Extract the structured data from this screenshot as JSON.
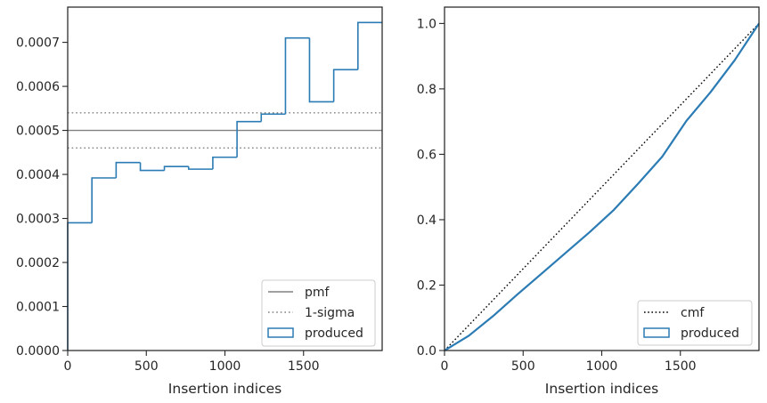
{
  "chart_data": [
    {
      "type": "histogram-step",
      "xlabel": "Insertion indices",
      "ylabel": "",
      "xlim": [
        0,
        2000
      ],
      "ylim": [
        0,
        0.00078
      ],
      "x_ticks": [
        0,
        500,
        1000,
        1500
      ],
      "x_tick_labels": [
        "0",
        "500",
        "1000",
        "1500"
      ],
      "y_ticks": [
        0,
        0.0001,
        0.0002,
        0.0003,
        0.0004,
        0.0005,
        0.0006,
        0.0007
      ],
      "y_tick_labels": [
        "0.0000",
        "0.0001",
        "0.0002",
        "0.0003",
        "0.0004",
        "0.0005",
        "0.0006",
        "0.0007"
      ],
      "bin_edges": [
        0,
        154,
        308,
        462,
        615,
        769,
        923,
        1077,
        1231,
        1385,
        1538,
        1692,
        1846,
        2000
      ],
      "values": [
        0.00029,
        0.000392,
        0.000427,
        0.000409,
        0.000418,
        0.000412,
        0.000439,
        0.00052,
        0.000537,
        0.00071,
        0.000565,
        0.000638,
        0.000745
      ],
      "reference_lines": [
        {
          "name": "pmf",
          "y": 0.0005,
          "style": "solid",
          "color": "#808080"
        },
        {
          "name": "1-sigma",
          "y": 0.00054,
          "style": "dotted",
          "color": "#808080"
        },
        {
          "name": "1-sigma",
          "y": 0.00046,
          "style": "dotted",
          "color": "#808080"
        }
      ],
      "series_color": "#2b7bb4",
      "legend": {
        "placement": "lower right",
        "entries": [
          "pmf",
          "1-sigma",
          "produced"
        ]
      }
    },
    {
      "type": "line",
      "xlabel": "Insertion indices",
      "ylabel": "",
      "xlim": [
        0,
        2000
      ],
      "ylim": [
        0,
        1.05
      ],
      "x_ticks": [
        0,
        500,
        1000,
        1500
      ],
      "x_tick_labels": [
        "0",
        "500",
        "1000",
        "1500"
      ],
      "y_ticks": [
        0,
        0.2,
        0.4,
        0.6,
        0.8,
        1.0
      ],
      "y_tick_labels": [
        "0.0",
        "0.2",
        "0.4",
        "0.6",
        "0.8",
        "1.0"
      ],
      "series": [
        {
          "name": "cmf",
          "style": "dotted",
          "color": "#000000",
          "x": [
            0,
            2000
          ],
          "y": [
            0,
            1.0
          ]
        },
        {
          "name": "produced",
          "style": "solid",
          "color": "#2b7bb4",
          "x": [
            0,
            154,
            308,
            462,
            615,
            769,
            923,
            1077,
            1231,
            1385,
            1538,
            1692,
            1846,
            2000
          ],
          "y": [
            0,
            0.045,
            0.105,
            0.171,
            0.234,
            0.298,
            0.362,
            0.43,
            0.51,
            0.593,
            0.702,
            0.79,
            0.888,
            1.0
          ]
        }
      ],
      "legend": {
        "placement": "lower right",
        "entries": [
          "cmf",
          "produced"
        ]
      }
    }
  ]
}
